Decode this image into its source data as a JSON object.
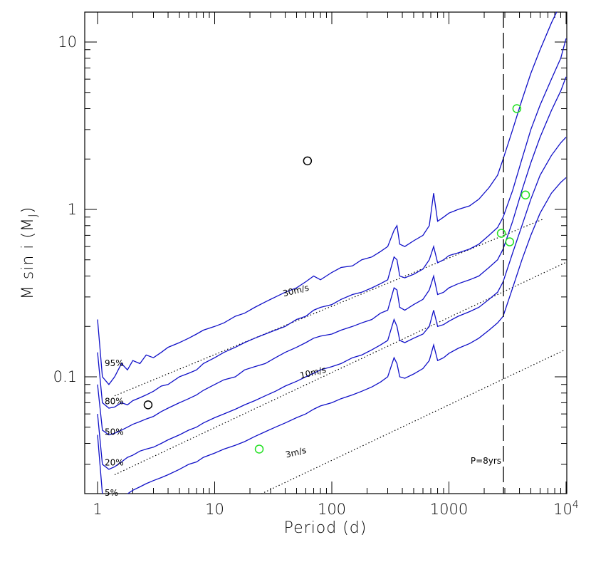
{
  "chart_data": {
    "type": "line",
    "xlabel": "Period (d)",
    "ylabel": "M sin i (M",
    "ylabel_sub": "J",
    "ylabel_close": ")",
    "xscale": "log",
    "yscale": "log",
    "xlim": [
      0.85,
      10000
    ],
    "ylim": [
      0.02,
      16
    ],
    "x_ticks": [
      {
        "value": 1,
        "label": "1"
      },
      {
        "value": 10,
        "label": "10"
      },
      {
        "value": 100,
        "label": "100"
      },
      {
        "value": 1000,
        "label": "1000"
      },
      {
        "value": 10000,
        "label": "10",
        "sup": "4"
      }
    ],
    "y_ticks": [
      {
        "value": 0.1,
        "label": "0.1"
      },
      {
        "value": 1,
        "label": "1"
      },
      {
        "value": 10,
        "label": "10"
      }
    ],
    "line_color": "#1010c8",
    "series": [
      {
        "name": "95%",
        "x": [
          1,
          1.1,
          1.25,
          1.4,
          1.6,
          1.8,
          2,
          2.3,
          2.6,
          3,
          3.5,
          4,
          5,
          6,
          7,
          8,
          10,
          12,
          15,
          18,
          22,
          27,
          33,
          40,
          50,
          60,
          70,
          80,
          100,
          120,
          150,
          180,
          220,
          260,
          300,
          340,
          360,
          380,
          420,
          500,
          600,
          680,
          740,
          800,
          900,
          1000,
          1200,
          1500,
          1800,
          2200,
          2600,
          2900,
          3500,
          4200,
          5000,
          6000,
          7500,
          9000,
          10000
        ],
        "y": [
          0.22,
          0.1,
          0.09,
          0.1,
          0.12,
          0.11,
          0.125,
          0.12,
          0.135,
          0.13,
          0.14,
          0.15,
          0.16,
          0.17,
          0.18,
          0.19,
          0.2,
          0.21,
          0.23,
          0.24,
          0.26,
          0.28,
          0.3,
          0.32,
          0.34,
          0.37,
          0.4,
          0.38,
          0.42,
          0.45,
          0.46,
          0.5,
          0.52,
          0.56,
          0.6,
          0.75,
          0.8,
          0.62,
          0.6,
          0.65,
          0.7,
          0.8,
          1.25,
          0.85,
          0.9,
          0.95,
          1.0,
          1.05,
          1.15,
          1.35,
          1.6,
          2.0,
          3.0,
          4.5,
          6.5,
          9.0,
          13,
          17,
          20
        ]
      },
      {
        "name": "80%",
        "x": [
          1,
          1.1,
          1.25,
          1.4,
          1.6,
          1.8,
          2,
          2.3,
          2.6,
          3,
          3.5,
          4,
          5,
          6,
          7,
          8,
          10,
          12,
          15,
          18,
          22,
          27,
          33,
          40,
          50,
          60,
          70,
          80,
          100,
          120,
          150,
          180,
          220,
          260,
          300,
          340,
          360,
          380,
          420,
          500,
          600,
          680,
          740,
          800,
          900,
          1000,
          1200,
          1500,
          1800,
          2200,
          2600,
          2900,
          3500,
          4200,
          5000,
          6000,
          7500,
          9000,
          10000
        ],
        "y": [
          0.14,
          0.07,
          0.065,
          0.066,
          0.07,
          0.068,
          0.072,
          0.075,
          0.078,
          0.082,
          0.088,
          0.09,
          0.1,
          0.105,
          0.11,
          0.12,
          0.13,
          0.14,
          0.15,
          0.16,
          0.17,
          0.18,
          0.19,
          0.2,
          0.22,
          0.23,
          0.25,
          0.26,
          0.27,
          0.29,
          0.31,
          0.32,
          0.34,
          0.36,
          0.38,
          0.52,
          0.5,
          0.4,
          0.39,
          0.41,
          0.44,
          0.5,
          0.6,
          0.48,
          0.5,
          0.53,
          0.55,
          0.58,
          0.62,
          0.7,
          0.78,
          0.9,
          1.3,
          2.0,
          3.0,
          4.2,
          6.0,
          8.0,
          10.5
        ]
      },
      {
        "name": "50%",
        "x": [
          1,
          1.1,
          1.25,
          1.4,
          1.6,
          1.8,
          2,
          2.3,
          2.6,
          3,
          3.5,
          4,
          5,
          6,
          7,
          8,
          10,
          12,
          15,
          18,
          22,
          27,
          33,
          40,
          50,
          60,
          70,
          80,
          100,
          120,
          150,
          180,
          220,
          260,
          300,
          340,
          360,
          380,
          420,
          500,
          600,
          680,
          740,
          800,
          900,
          1000,
          1200,
          1500,
          1800,
          2200,
          2600,
          2900,
          3500,
          4200,
          5000,
          6000,
          7500,
          9000,
          10000
        ],
        "y": [
          0.09,
          0.048,
          0.045,
          0.046,
          0.048,
          0.05,
          0.052,
          0.054,
          0.056,
          0.058,
          0.062,
          0.065,
          0.07,
          0.074,
          0.078,
          0.083,
          0.09,
          0.096,
          0.1,
          0.11,
          0.115,
          0.12,
          0.13,
          0.14,
          0.15,
          0.16,
          0.17,
          0.175,
          0.18,
          0.19,
          0.2,
          0.21,
          0.22,
          0.24,
          0.25,
          0.34,
          0.33,
          0.26,
          0.25,
          0.27,
          0.29,
          0.33,
          0.4,
          0.31,
          0.32,
          0.34,
          0.36,
          0.38,
          0.4,
          0.45,
          0.5,
          0.58,
          0.85,
          1.3,
          1.9,
          2.7,
          3.9,
          5.1,
          6.2
        ]
      },
      {
        "name": "20%",
        "x": [
          1,
          1.1,
          1.25,
          1.4,
          1.6,
          1.8,
          2,
          2.3,
          2.6,
          3,
          3.5,
          4,
          5,
          6,
          7,
          8,
          10,
          12,
          15,
          18,
          22,
          27,
          33,
          40,
          50,
          60,
          70,
          80,
          100,
          120,
          150,
          180,
          220,
          260,
          300,
          340,
          360,
          380,
          420,
          500,
          600,
          680,
          740,
          800,
          900,
          1000,
          1200,
          1500,
          1800,
          2200,
          2600,
          2900,
          3500,
          4200,
          5000,
          6000,
          7500,
          9000,
          10000
        ],
        "y": [
          0.06,
          0.03,
          0.028,
          0.029,
          0.031,
          0.033,
          0.034,
          0.036,
          0.037,
          0.038,
          0.04,
          0.042,
          0.045,
          0.048,
          0.05,
          0.053,
          0.057,
          0.06,
          0.064,
          0.068,
          0.072,
          0.077,
          0.082,
          0.088,
          0.094,
          0.1,
          0.105,
          0.11,
          0.115,
          0.12,
          0.13,
          0.135,
          0.145,
          0.155,
          0.165,
          0.22,
          0.2,
          0.165,
          0.16,
          0.17,
          0.18,
          0.2,
          0.25,
          0.2,
          0.205,
          0.215,
          0.23,
          0.245,
          0.26,
          0.29,
          0.32,
          0.37,
          0.55,
          0.8,
          1.15,
          1.6,
          2.1,
          2.5,
          2.7
        ]
      },
      {
        "name": "5%",
        "x": [
          1,
          1.1,
          1.25,
          1.4,
          1.6,
          1.8,
          2,
          2.3,
          2.6,
          3,
          3.5,
          4,
          5,
          6,
          7,
          8,
          10,
          12,
          15,
          18,
          22,
          27,
          33,
          40,
          50,
          60,
          70,
          80,
          100,
          120,
          150,
          180,
          220,
          260,
          300,
          340,
          360,
          380,
          420,
          500,
          600,
          680,
          740,
          800,
          900,
          1000,
          1200,
          1500,
          1800,
          2200,
          2600,
          2900,
          3500,
          4200,
          5000,
          6000,
          7500,
          9000,
          10000
        ],
        "y": [
          0.045,
          0.02,
          0.018,
          0.0185,
          0.019,
          0.02,
          0.021,
          0.022,
          0.023,
          0.024,
          0.025,
          0.026,
          0.028,
          0.03,
          0.031,
          0.033,
          0.035,
          0.037,
          0.039,
          0.041,
          0.044,
          0.047,
          0.05,
          0.053,
          0.057,
          0.06,
          0.064,
          0.067,
          0.07,
          0.074,
          0.078,
          0.082,
          0.087,
          0.093,
          0.1,
          0.13,
          0.12,
          0.1,
          0.098,
          0.104,
          0.112,
          0.125,
          0.155,
          0.125,
          0.13,
          0.138,
          0.148,
          0.158,
          0.17,
          0.19,
          0.21,
          0.23,
          0.34,
          0.5,
          0.7,
          0.95,
          1.25,
          1.45,
          1.55
        ]
      }
    ],
    "percent_labels": [
      {
        "text": "95%",
        "x": 1.15,
        "y": 0.116
      },
      {
        "text": "80%",
        "x": 1.15,
        "y": 0.0685
      },
      {
        "text": "50%",
        "x": 1.15,
        "y": 0.045
      },
      {
        "text": "20%",
        "x": 1.15,
        "y": 0.0295
      },
      {
        "text": "5%",
        "x": 1.15,
        "y": 0.0195
      }
    ],
    "rv_lines": [
      {
        "label": "30m/s",
        "x": [
          1.4,
          6500
        ],
        "y": [
          0.077,
          0.88
        ],
        "label_x": 50,
        "label_y": 0.315,
        "angle": -14
      },
      {
        "label": "10m/s",
        "x": [
          1.4,
          9800
        ],
        "y": [
          0.026,
          0.48
        ],
        "label_x": 70,
        "label_y": 0.102,
        "angle": -14
      },
      {
        "label": "3m/s",
        "x": [
          25,
          9800
        ],
        "y": [
          0.02,
          0.145
        ],
        "label_x": 50,
        "label_y": 0.034,
        "angle": -14
      }
    ],
    "vline": {
      "x": 2920,
      "label": "P=8yrs"
    },
    "points_black": [
      {
        "x": 2.7,
        "y": 0.068
      },
      {
        "x": 62,
        "y": 1.95
      }
    ],
    "points_green": [
      {
        "x": 24,
        "y": 0.037
      },
      {
        "x": 2800,
        "y": 0.72
      },
      {
        "x": 3300,
        "y": 0.64
      },
      {
        "x": 3800,
        "y": 4.0
      },
      {
        "x": 4500,
        "y": 1.22
      }
    ]
  }
}
